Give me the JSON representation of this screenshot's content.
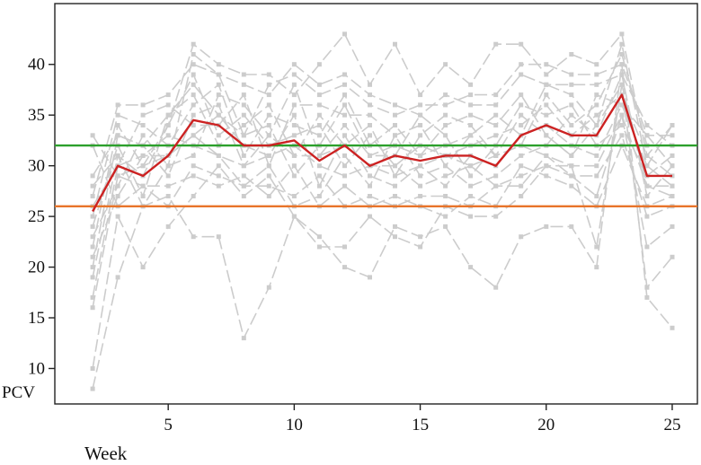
{
  "chart_data": {
    "type": "line",
    "xlabel": "Week",
    "ylabel": "PCV",
    "xlim": [
      0.5,
      26
    ],
    "ylim": [
      6.5,
      46
    ],
    "xticks": [
      5,
      10,
      15,
      20,
      25
    ],
    "yticks": [
      10,
      15,
      20,
      25,
      30,
      35,
      40
    ],
    "grid": false,
    "reference_lines": [
      {
        "y": 32.0,
        "color": "#2ca02c"
      },
      {
        "y": 26.0,
        "color": "#e8742a"
      }
    ],
    "mean_series": {
      "color": "#cc2222",
      "x": [
        2,
        3,
        4,
        5,
        6,
        7,
        8,
        9,
        10,
        11,
        12,
        13,
        14,
        15,
        16,
        17,
        18,
        19,
        20,
        21,
        22,
        23,
        24,
        25
      ],
      "values": [
        25.5,
        30,
        29,
        31,
        34.5,
        34,
        32,
        32,
        32.5,
        30.5,
        32,
        30,
        31,
        30.5,
        31,
        31,
        30,
        33,
        34,
        33,
        33,
        37,
        29,
        29
      ]
    },
    "individual_series_color": "#cccccc",
    "individual_series": [
      {
        "x": [
          2,
          3,
          4,
          5,
          6,
          7,
          8,
          9,
          10,
          11,
          12,
          13,
          14,
          15,
          16,
          17,
          18,
          19,
          20,
          21,
          22,
          23,
          24,
          25
        ],
        "values": [
          8,
          19,
          26,
          27,
          23,
          23,
          13,
          18,
          25,
          23,
          20,
          19,
          24,
          23,
          24,
          20,
          18,
          23,
          24,
          24,
          20,
          40,
          17,
          14
        ]
      },
      {
        "x": [
          2,
          3,
          4,
          5,
          6,
          7,
          8,
          9,
          10,
          11,
          12,
          13,
          14,
          15,
          16,
          17,
          18,
          19,
          20,
          21,
          22,
          23,
          24,
          25
        ],
        "values": [
          10,
          25,
          20,
          24,
          27,
          30,
          27,
          29,
          25,
          22,
          22,
          25,
          23,
          22,
          26,
          25,
          25,
          27,
          30,
          30,
          22,
          38,
          18,
          21
        ]
      },
      {
        "x": [
          2,
          3,
          4,
          5,
          6,
          7,
          8,
          9,
          10,
          11,
          12,
          13,
          14,
          15,
          16,
          17,
          18,
          19,
          20,
          21,
          22,
          23,
          24,
          25
        ],
        "values": [
          16,
          29,
          28,
          26,
          30,
          29,
          28,
          28,
          27,
          29,
          26,
          27,
          26,
          27,
          27,
          26,
          28,
          28,
          31,
          29,
          27,
          35,
          22,
          24
        ]
      },
      {
        "x": [
          2,
          3,
          4,
          5,
          6,
          7,
          8,
          9,
          10,
          11,
          12,
          13,
          14,
          15,
          16,
          17,
          18,
          19,
          20,
          21,
          22,
          23,
          24,
          25
        ],
        "values": [
          17,
          30,
          31,
          31,
          33,
          35,
          32,
          31,
          32,
          30,
          29,
          30,
          30,
          28,
          29,
          30,
          28,
          29,
          30,
          29,
          29,
          33,
          25,
          26
        ]
      },
      {
        "x": [
          2,
          3,
          4,
          5,
          6,
          7,
          8,
          9,
          10,
          11,
          12,
          13,
          14,
          15,
          16,
          17,
          18,
          19,
          20,
          21,
          22,
          23,
          24,
          25
        ],
        "values": [
          19,
          31,
          26,
          30,
          41,
          39,
          33,
          34,
          29,
          32,
          36,
          31,
          32,
          31,
          32,
          33,
          31,
          35,
          33,
          31,
          34,
          38,
          28,
          27
        ]
      },
      {
        "x": [
          2,
          3,
          4,
          5,
          6,
          7,
          8,
          9,
          10,
          11,
          12,
          13,
          14,
          15,
          16,
          17,
          18,
          19,
          20,
          21,
          22,
          23,
          24,
          25
        ],
        "values": [
          20,
          33,
          32,
          29,
          35,
          36,
          30,
          31,
          35,
          28,
          33,
          29,
          28,
          30,
          28,
          31,
          30,
          33,
          34,
          32,
          31,
          36,
          30,
          28
        ]
      },
      {
        "x": [
          2,
          3,
          4,
          5,
          6,
          7,
          8,
          9,
          10,
          11,
          12,
          13,
          14,
          15,
          16,
          17,
          18,
          19,
          20,
          21,
          22,
          23,
          24,
          25
        ],
        "values": [
          21,
          27,
          31,
          33,
          32,
          31,
          28,
          30,
          26,
          27,
          31,
          28,
          33,
          29,
          30,
          28,
          29,
          31,
          32,
          35,
          33,
          39,
          27,
          30
        ]
      },
      {
        "x": [
          2,
          3,
          4,
          5,
          6,
          7,
          8,
          9,
          10,
          11,
          12,
          13,
          14,
          15,
          16,
          17,
          18,
          19,
          20,
          21,
          22,
          23,
          24,
          25
        ],
        "values": [
          22,
          34,
          30,
          34,
          39,
          33,
          35,
          32,
          33,
          34,
          30,
          33,
          30,
          32,
          31,
          32,
          33,
          34,
          36,
          33,
          35,
          37,
          31,
          29
        ]
      },
      {
        "x": [
          2,
          3,
          4,
          5,
          6,
          7,
          8,
          9,
          10,
          11,
          12,
          13,
          14,
          15,
          16,
          17,
          18,
          19,
          20,
          21,
          22,
          23,
          24,
          25
        ],
        "values": [
          23,
          28,
          33,
          30,
          31,
          37,
          36,
          33,
          38,
          31,
          34,
          31,
          31,
          35,
          33,
          29,
          32,
          36,
          35,
          36,
          32,
          34,
          29,
          31
        ]
      },
      {
        "x": [
          2,
          3,
          4,
          5,
          6,
          7,
          8,
          9,
          10,
          11,
          12,
          13,
          14,
          15,
          16,
          17,
          18,
          19,
          20,
          21,
          22,
          23,
          24,
          25
        ],
        "values": [
          24,
          32,
          27,
          35,
          37,
          32,
          34,
          36,
          31,
          35,
          32,
          34,
          29,
          33,
          35,
          34,
          31,
          32,
          37,
          34,
          36,
          41,
          32,
          32
        ]
      },
      {
        "x": [
          2,
          3,
          4,
          5,
          6,
          7,
          8,
          9,
          10,
          11,
          12,
          13,
          14,
          15,
          16,
          17,
          18,
          19,
          20,
          21,
          22,
          23,
          24,
          25
        ],
        "values": [
          25,
          35,
          34,
          32,
          36,
          38,
          31,
          35,
          34,
          33,
          37,
          32,
          34,
          31,
          34,
          35,
          34,
          37,
          33,
          31,
          37,
          36,
          33,
          33
        ]
      },
      {
        "x": [
          2,
          3,
          4,
          5,
          6,
          7,
          8,
          9,
          10,
          11,
          12,
          13,
          14,
          15,
          16,
          17,
          18,
          19,
          20,
          21,
          22,
          23,
          24,
          25
        ],
        "values": [
          26,
          30,
          35,
          36,
          34,
          34,
          37,
          30,
          36,
          36,
          35,
          35,
          33,
          34,
          30,
          33,
          35,
          33,
          38,
          37,
          34,
          42,
          30,
          34
        ]
      },
      {
        "x": [
          2,
          3,
          4,
          5,
          6,
          7,
          8,
          9,
          10,
          11,
          12,
          13,
          14,
          15,
          16,
          17,
          18,
          19,
          20,
          21,
          22,
          23,
          24,
          25
        ],
        "values": [
          27,
          36,
          36,
          37,
          40,
          39,
          38,
          37,
          40,
          38,
          39,
          37,
          36,
          35,
          37,
          36,
          36,
          39,
          38,
          38,
          38,
          39,
          34,
          32
        ]
      },
      {
        "x": [
          2,
          3,
          4,
          5,
          6,
          7,
          8,
          9,
          10,
          11,
          12,
          13,
          14,
          15,
          16,
          17,
          18,
          19,
          20,
          21,
          22,
          23,
          24,
          25
        ],
        "values": [
          28,
          31,
          29,
          34,
          42,
          40,
          39,
          39,
          37,
          40,
          43,
          38,
          42,
          37,
          40,
          38,
          42,
          42,
          39,
          41,
          40,
          43,
          31,
          34
        ]
      },
      {
        "x": [
          2,
          3,
          4,
          5,
          6,
          7,
          8,
          9,
          10,
          11,
          12,
          13,
          14,
          15,
          16,
          17,
          18,
          19,
          20,
          21,
          22,
          23,
          24,
          25
        ],
        "values": [
          29,
          33,
          32,
          35,
          38,
          35,
          33,
          38,
          39,
          37,
          38,
          36,
          35,
          36,
          36,
          37,
          37,
          40,
          40,
          39,
          39,
          40,
          33,
          30
        ]
      },
      {
        "x": [
          2,
          3,
          4,
          5,
          6,
          7,
          8,
          9,
          10,
          11,
          12,
          13,
          14,
          15,
          16,
          17,
          18,
          19,
          20,
          21,
          22,
          23,
          24,
          25
        ],
        "values": [
          32,
          26,
          28,
          28,
          29,
          28,
          29,
          27,
          30,
          26,
          28,
          26,
          27,
          26,
          25,
          27,
          26,
          30,
          29,
          28,
          26,
          32,
          26,
          27
        ]
      },
      {
        "x": [
          2,
          3,
          4,
          5,
          6,
          7,
          8,
          9,
          10,
          11,
          12,
          13,
          14,
          15,
          16,
          17,
          18,
          19,
          20,
          21,
          22,
          23,
          24,
          25
        ],
        "values": [
          33,
          29,
          30,
          31,
          33,
          31,
          30,
          33,
          31,
          31,
          32,
          30,
          29,
          30,
          31,
          30,
          31,
          32,
          31,
          30,
          30,
          35,
          28,
          28
        ]
      }
    ]
  }
}
